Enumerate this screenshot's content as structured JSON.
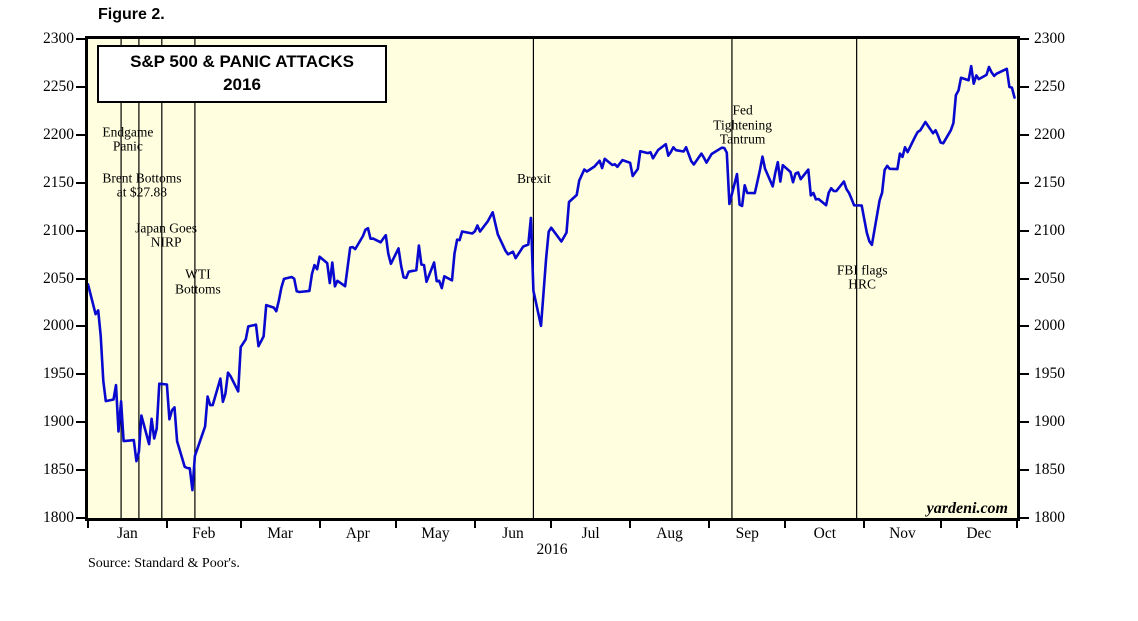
{
  "figure_label": "Figure 2.",
  "source_note": "Source: Standard & Poor's.",
  "watermark": "yardeni.com",
  "chart_data": {
    "type": "line",
    "title": "S&P 500 & PANIC ATTACKS",
    "subtitle": "2016",
    "plot_background": "#FFFFE0",
    "line_color": "#0808CF",
    "grid": false,
    "y_axis": {
      "min": 1800,
      "max": 2300,
      "step": 50,
      "ticks": [
        2300,
        2250,
        2200,
        2150,
        2100,
        2050,
        2000,
        1950,
        1900,
        1850,
        1800
      ]
    },
    "x_axis": {
      "year_label": "2016",
      "months": [
        "Jan",
        "Feb",
        "Mar",
        "Apr",
        "May",
        "Jun",
        "Jul",
        "Aug",
        "Sep",
        "Oct",
        "Nov",
        "Dec"
      ],
      "month_start_days": [
        1,
        32,
        61,
        92,
        122,
        153,
        183,
        214,
        245,
        275,
        306,
        336,
        366
      ]
    },
    "events": [
      {
        "label": "Endgame\nPanic",
        "line_day": 14,
        "label_day": 15.5,
        "label_value": 2198
      },
      {
        "label": "Brent Bottoms\nat $27.88",
        "line_day": 21,
        "label_day": 21,
        "label_value": 2150
      },
      {
        "label": "Japan Goes\nNIRP",
        "line_day": 30,
        "label_day": 30.5,
        "label_value": 2098
      },
      {
        "label": "WTI\nBottoms",
        "line_day": 43,
        "label_day": 43,
        "label_value": 2049
      },
      {
        "label": "Brexit",
        "line_day": 176,
        "label_day": 175,
        "label_value": 2157
      },
      {
        "label": "Fed\nTightening\nTantrum",
        "line_day": 254,
        "label_day": 257,
        "label_value": 2213
      },
      {
        "label": "FBI flags\nHRC",
        "line_day": 303,
        "label_day": 304,
        "label_value": 2054
      }
    ],
    "series": [
      {
        "name": "S&P 500",
        "color": "#0808CF",
        "points": [
          [
            1,
            2043.9
          ],
          [
            4,
            2012.7
          ],
          [
            5,
            2016.7
          ],
          [
            6,
            1990.3
          ],
          [
            7,
            1943.1
          ],
          [
            8,
            1922.0
          ],
          [
            11,
            1923.7
          ],
          [
            12,
            1938.7
          ],
          [
            13,
            1890.3
          ],
          [
            14,
            1921.8
          ],
          [
            15,
            1880.3
          ],
          [
            19,
            1881.3
          ],
          [
            20,
            1859.3
          ],
          [
            21,
            1869.0
          ],
          [
            22,
            1906.9
          ],
          [
            25,
            1877.1
          ],
          [
            26,
            1903.6
          ],
          [
            27,
            1883.0
          ],
          [
            28,
            1893.4
          ],
          [
            29,
            1940.2
          ],
          [
            32,
            1939.4
          ],
          [
            33,
            1903.0
          ],
          [
            34,
            1912.5
          ],
          [
            35,
            1915.5
          ],
          [
            36,
            1880.1
          ],
          [
            39,
            1853.4
          ],
          [
            40,
            1852.2
          ],
          [
            41,
            1851.9
          ],
          [
            42,
            1829.1
          ],
          [
            43,
            1864.8
          ],
          [
            47,
            1895.6
          ],
          [
            48,
            1926.8
          ],
          [
            49,
            1917.8
          ],
          [
            50,
            1917.8
          ],
          [
            53,
            1945.5
          ],
          [
            54,
            1921.3
          ],
          [
            55,
            1929.8
          ],
          [
            56,
            1951.7
          ],
          [
            57,
            1948.1
          ],
          [
            60,
            1932.2
          ],
          [
            61,
            1978.4
          ],
          [
            63,
            1986.5
          ],
          [
            64,
            2000.0
          ],
          [
            67,
            2001.8
          ],
          [
            68,
            1979.3
          ],
          [
            70,
            1989.6
          ],
          [
            71,
            2022.2
          ],
          [
            74,
            2019.6
          ],
          [
            75,
            2015.9
          ],
          [
            76,
            2027.2
          ],
          [
            77,
            2040.6
          ],
          [
            78,
            2049.6
          ],
          [
            81,
            2051.6
          ],
          [
            82,
            2049.8
          ],
          [
            83,
            2036.7
          ],
          [
            84,
            2035.9
          ],
          [
            88,
            2037.1
          ],
          [
            89,
            2055.0
          ],
          [
            90,
            2064.0
          ],
          [
            91,
            2059.7
          ],
          [
            92,
            2072.8
          ],
          [
            95,
            2066.1
          ],
          [
            96,
            2045.2
          ],
          [
            97,
            2066.7
          ],
          [
            98,
            2041.9
          ],
          [
            99,
            2047.6
          ],
          [
            102,
            2042.0
          ],
          [
            103,
            2061.7
          ],
          [
            104,
            2082.4
          ],
          [
            105,
            2082.8
          ],
          [
            106,
            2080.7
          ],
          [
            109,
            2094.3
          ],
          [
            110,
            2100.8
          ],
          [
            111,
            2102.4
          ],
          [
            112,
            2091.5
          ],
          [
            113,
            2091.6
          ],
          [
            116,
            2087.8
          ],
          [
            117,
            2091.7
          ],
          [
            118,
            2095.2
          ],
          [
            119,
            2075.8
          ],
          [
            120,
            2065.3
          ],
          [
            123,
            2081.4
          ],
          [
            124,
            2063.4
          ],
          [
            125,
            2051.1
          ],
          [
            126,
            2050.6
          ],
          [
            127,
            2057.1
          ],
          [
            130,
            2058.7
          ],
          [
            131,
            2084.4
          ],
          [
            132,
            2064.5
          ],
          [
            133,
            2064.1
          ],
          [
            134,
            2046.6
          ],
          [
            137,
            2066.7
          ],
          [
            138,
            2047.2
          ],
          [
            139,
            2047.6
          ],
          [
            140,
            2040.0
          ],
          [
            141,
            2052.3
          ],
          [
            144,
            2048.0
          ],
          [
            145,
            2076.1
          ],
          [
            146,
            2090.5
          ],
          [
            147,
            2090.1
          ],
          [
            148,
            2099.1
          ],
          [
            152,
            2097.0
          ],
          [
            153,
            2099.3
          ],
          [
            154,
            2105.3
          ],
          [
            155,
            2099.1
          ],
          [
            158,
            2109.4
          ],
          [
            160,
            2119.1
          ],
          [
            162,
            2096.1
          ],
          [
            165,
            2079.1
          ],
          [
            166,
            2075.3
          ],
          [
            168,
            2078.0
          ],
          [
            169,
            2071.2
          ],
          [
            172,
            2083.3
          ],
          [
            174,
            2085.5
          ],
          [
            175,
            2113.3
          ],
          [
            176,
            2037.4
          ],
          [
            179,
            2000.5
          ],
          [
            180,
            2036.1
          ],
          [
            181,
            2070.8
          ],
          [
            182,
            2098.9
          ],
          [
            183,
            2103.0
          ],
          [
            187,
            2088.6
          ],
          [
            189,
            2097.9
          ],
          [
            190,
            2129.9
          ],
          [
            193,
            2137.2
          ],
          [
            194,
            2152.1
          ],
          [
            196,
            2163.8
          ],
          [
            197,
            2161.7
          ],
          [
            200,
            2166.9
          ],
          [
            202,
            2173.0
          ],
          [
            203,
            2165.2
          ],
          [
            204,
            2175.0
          ],
          [
            207,
            2168.5
          ],
          [
            208,
            2169.2
          ],
          [
            209,
            2166.6
          ],
          [
            210,
            2170.1
          ],
          [
            211,
            2173.6
          ],
          [
            214,
            2170.8
          ],
          [
            215,
            2157.0
          ],
          [
            217,
            2164.3
          ],
          [
            218,
            2182.9
          ],
          [
            221,
            2180.9
          ],
          [
            222,
            2181.7
          ],
          [
            223,
            2175.5
          ],
          [
            225,
            2184.1
          ],
          [
            228,
            2190.2
          ],
          [
            229,
            2178.2
          ],
          [
            230,
            2182.2
          ],
          [
            231,
            2187.0
          ],
          [
            232,
            2183.9
          ],
          [
            235,
            2182.6
          ],
          [
            236,
            2186.9
          ],
          [
            238,
            2172.5
          ],
          [
            239,
            2169.0
          ],
          [
            242,
            2180.4
          ],
          [
            243,
            2176.1
          ],
          [
            244,
            2171.0
          ],
          [
            246,
            2180.0
          ],
          [
            250,
            2186.5
          ],
          [
            251,
            2186.2
          ],
          [
            252,
            2181.3
          ],
          [
            253,
            2127.8
          ],
          [
            256,
            2159.0
          ],
          [
            257,
            2127.0
          ],
          [
            258,
            2125.8
          ],
          [
            259,
            2147.3
          ],
          [
            260,
            2139.2
          ],
          [
            263,
            2139.1
          ],
          [
            264,
            2151.1
          ],
          [
            265,
            2163.1
          ],
          [
            266,
            2177.2
          ],
          [
            267,
            2164.7
          ],
          [
            270,
            2146.1
          ],
          [
            271,
            2159.9
          ],
          [
            272,
            2171.4
          ],
          [
            273,
            2151.1
          ],
          [
            274,
            2168.3
          ],
          [
            277,
            2161.2
          ],
          [
            278,
            2150.5
          ],
          [
            279,
            2159.7
          ],
          [
            280,
            2160.8
          ],
          [
            281,
            2153.7
          ],
          [
            284,
            2163.7
          ],
          [
            285,
            2136.7
          ],
          [
            286,
            2139.2
          ],
          [
            287,
            2132.6
          ],
          [
            288,
            2133.0
          ],
          [
            291,
            2126.5
          ],
          [
            292,
            2139.6
          ],
          [
            293,
            2144.3
          ],
          [
            294,
            2141.3
          ],
          [
            295,
            2141.2
          ],
          [
            298,
            2151.3
          ],
          [
            299,
            2143.2
          ],
          [
            300,
            2139.4
          ],
          [
            301,
            2133.0
          ],
          [
            302,
            2126.4
          ],
          [
            305,
            2126.2
          ],
          [
            306,
            2111.7
          ],
          [
            307,
            2097.9
          ],
          [
            308,
            2088.7
          ],
          [
            309,
            2085.2
          ],
          [
            312,
            2131.5
          ],
          [
            313,
            2139.6
          ],
          [
            314,
            2163.3
          ],
          [
            315,
            2167.5
          ],
          [
            316,
            2164.5
          ],
          [
            319,
            2164.2
          ],
          [
            320,
            2180.4
          ],
          [
            321,
            2176.9
          ],
          [
            322,
            2187.1
          ],
          [
            323,
            2181.9
          ],
          [
            326,
            2198.2
          ],
          [
            327,
            2202.9
          ],
          [
            328,
            2204.7
          ],
          [
            330,
            2213.4
          ],
          [
            333,
            2201.7
          ],
          [
            334,
            2204.7
          ],
          [
            335,
            2198.8
          ],
          [
            336,
            2192.0
          ],
          [
            337,
            2191.1
          ],
          [
            340,
            2204.7
          ],
          [
            341,
            2212.2
          ],
          [
            342,
            2241.4
          ],
          [
            343,
            2246.2
          ],
          [
            344,
            2259.5
          ],
          [
            347,
            2257.0
          ],
          [
            348,
            2271.7
          ],
          [
            349,
            2253.3
          ],
          [
            350,
            2262.0
          ],
          [
            351,
            2258.1
          ],
          [
            354,
            2262.5
          ],
          [
            355,
            2270.8
          ],
          [
            356,
            2265.2
          ],
          [
            357,
            2261.5
          ],
          [
            358,
            2263.8
          ],
          [
            362,
            2268.9
          ],
          [
            363,
            2249.9
          ],
          [
            364,
            2249.3
          ],
          [
            365,
            2238.8
          ]
        ]
      }
    ]
  }
}
